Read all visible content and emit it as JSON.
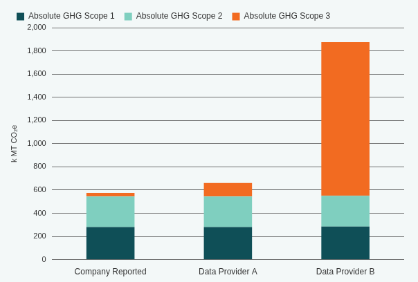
{
  "chart_data": {
    "type": "bar",
    "stacked": true,
    "legend": "top-left",
    "grid": true,
    "y_label": "k MT CO₂e",
    "categories": [
      "Company Reported",
      "Data Provider A",
      "Data Provider B"
    ],
    "series": [
      {
        "name": "Absolute GHG Scope 1",
        "color": "#0f4f57",
        "values": [
          280,
          280,
          285
        ]
      },
      {
        "name": "Absolute GHG Scope 2",
        "color": "#7fcfbf",
        "values": [
          265,
          265,
          265
        ]
      },
      {
        "name": "Absolute GHG Scope 3",
        "color": "#f26b21",
        "values": [
          30,
          115,
          1325
        ]
      }
    ],
    "ylim": [
      0,
      2000
    ],
    "yticks": [
      0,
      200,
      400,
      600,
      800,
      {
        "value": 1000,
        "label": "1,000"
      },
      {
        "value": 1200,
        "label": "1,200"
      },
      {
        "value": 1400,
        "label": "1,400"
      },
      {
        "value": 1600,
        "label": "1,600"
      },
      {
        "value": 1800,
        "label": "1,800"
      },
      {
        "value": 2000,
        "label": "2,000"
      }
    ]
  }
}
